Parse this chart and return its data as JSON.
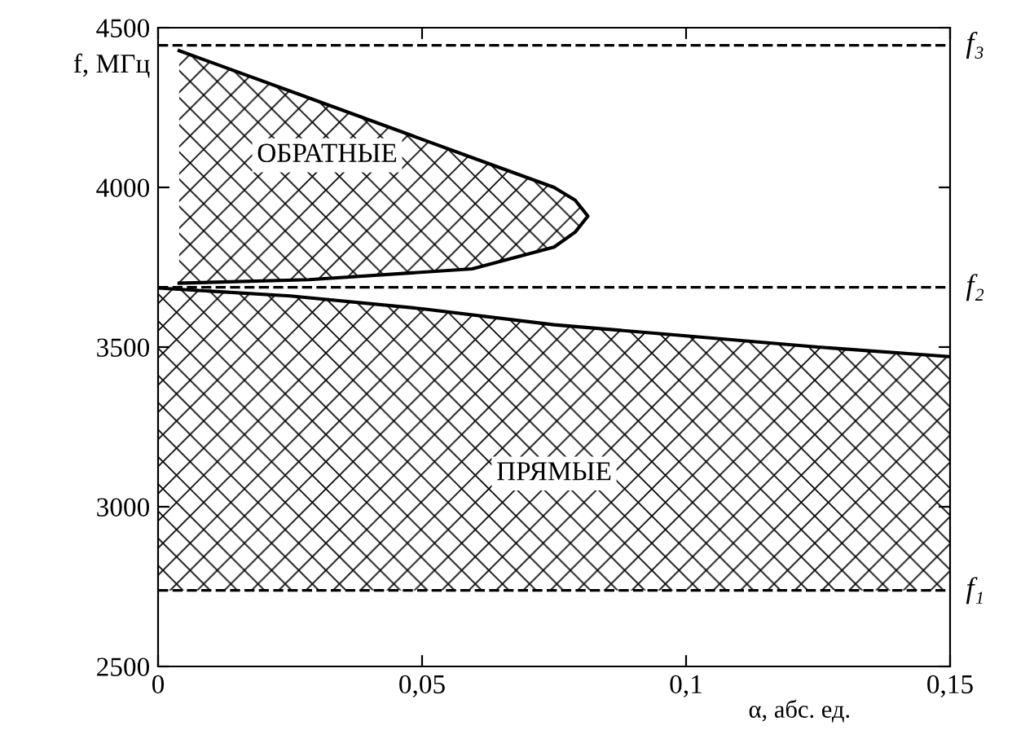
{
  "chart_data": {
    "type": "area",
    "xlabel": "α, абс. ед.",
    "ylabel": "f, МГц",
    "xlim": [
      0,
      0.15
    ],
    "ylim": [
      2500,
      4500
    ],
    "xticks": [
      0,
      {
        "value": 0.05,
        "label": "0,05"
      },
      {
        "value": 0.1,
        "label": "0,1"
      },
      {
        "value": 0.15,
        "label": "0,15"
      }
    ],
    "yticks": [
      2500,
      3000,
      3500,
      4000,
      4500
    ],
    "grid": false,
    "legend": false,
    "series": [
      {
        "name": "ПРЯМЫЕ",
        "type": "area",
        "color": "#000000",
        "x": [
          0,
          0.025,
          0.05,
          0.075,
          0.1,
          0.125,
          0.15
        ],
        "values": [
          3685,
          3660,
          3620,
          3570,
          3535,
          3500,
          3470
        ]
      },
      {
        "name": "ОБРАТНЫЕ",
        "type": "area",
        "color": "#000000",
        "x": [
          0.004,
          0.0286,
          0.0595,
          0.075,
          0.079,
          0.0814,
          0.079,
          0.075,
          0.0595,
          0.0286,
          0.004
        ],
        "values": [
          4428,
          4280,
          4093,
          4000,
          3960,
          3910,
          3860,
          3813,
          3745,
          3711,
          3700
        ]
      }
    ],
    "ref_lines": [
      {
        "axis": "y",
        "value": 4445,
        "label": "f₃",
        "line_style": "dashed"
      },
      {
        "axis": "y",
        "value": 3687,
        "label": "f₂",
        "line_style": "dashed"
      },
      {
        "axis": "y",
        "value": 2738,
        "label": "f₁",
        "line_style": "dashed"
      }
    ]
  }
}
